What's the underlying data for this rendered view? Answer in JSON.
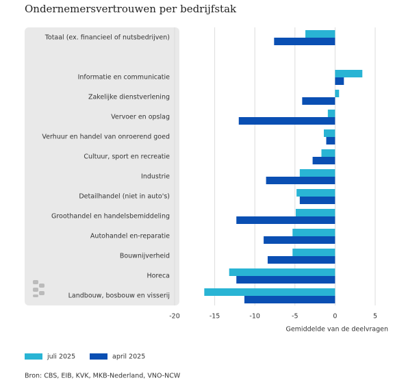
{
  "chart_data": {
    "type": "bar",
    "orientation": "horizontal",
    "title": "Ondernemersvertrouwen per bedrijfstak",
    "categories": [
      "Totaal (ex. financieel of nutsbedrijven)",
      null,
      "Informatie en communicatie",
      "Zakelijke dienstverlening",
      "Vervoer en opslag",
      "Verhuur en handel van onroerend goed",
      "Cultuur, sport en recreatie",
      "Industrie",
      "Detailhandel (niet in auto's)",
      "Groothandel en handelsbemiddeling",
      "Autohandel en-reparatie",
      "Bouwnijverheid",
      "Horeca",
      "Landbouw, bosbouw en visserij"
    ],
    "series": [
      {
        "name": "juli 2025",
        "color": "#29b4d4",
        "values": [
          -3.7,
          null,
          3.4,
          0.5,
          -0.9,
          -1.4,
          -1.7,
          -4.4,
          -4.8,
          -4.9,
          -5.3,
          -5.3,
          -13.2,
          -16.3
        ]
      },
      {
        "name": "april 2025",
        "color": "#0a4fb3",
        "values": [
          -7.6,
          null,
          1.1,
          -4.1,
          -12.0,
          -1.1,
          -2.8,
          -8.6,
          -4.4,
          -12.3,
          -8.9,
          -8.4,
          -12.3,
          -11.3
        ]
      }
    ],
    "xlim": [
      -20,
      5
    ],
    "xticks": [
      -20,
      -15,
      -10,
      -5,
      0,
      5
    ],
    "xlabel": "Gemiddelde van de deelvragen",
    "grid": true,
    "legend": "bottom",
    "source": "Bron: CBS, EIB, KVK, MKB-Nederland, VNO-NCW"
  }
}
